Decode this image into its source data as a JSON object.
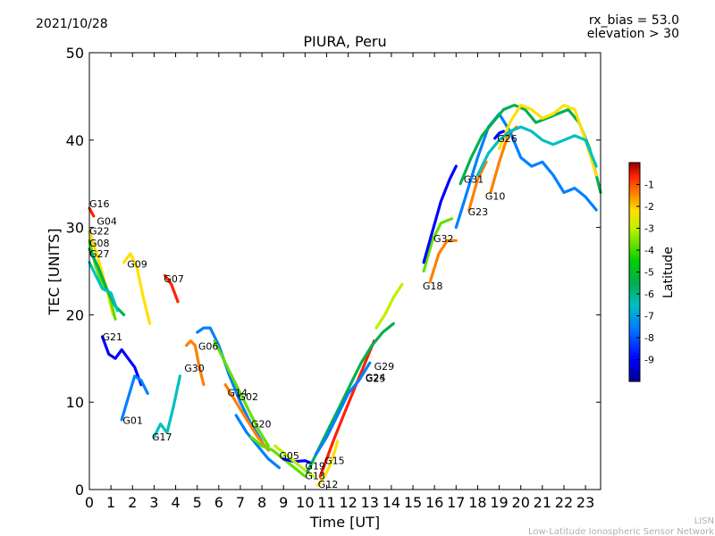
{
  "header": {
    "date": "2021/10/28",
    "rx_bias": "rx_bias = 53.0",
    "elevation": "elevation > 30"
  },
  "footer": {
    "org": "LISN",
    "org_full": "Low-Latitude Ionospheric Sensor Network"
  },
  "colors": {
    "ramp": [
      "#00008f",
      "#0000ff",
      "#0080ff",
      "#00c0c0",
      "#00b050",
      "#00d000",
      "#60e000",
      "#c0f000",
      "#ffe000",
      "#ff8000",
      "#ff2000",
      "#900000"
    ]
  },
  "chart_data": {
    "type": "line",
    "title": "PIURA, Peru",
    "xlabel": "Time [UT]",
    "ylabel": "TEC [UNITS]",
    "xlim": [
      0,
      23.7
    ],
    "ylim": [
      0,
      50
    ],
    "xticks": [
      0,
      1,
      2,
      3,
      4,
      5,
      6,
      7,
      8,
      9,
      10,
      11,
      12,
      13,
      14,
      15,
      16,
      17,
      18,
      19,
      20,
      21,
      22,
      23
    ],
    "yticks": [
      0,
      10,
      20,
      30,
      40,
      50
    ],
    "grid": false,
    "colorbar": {
      "label": "Latitude",
      "ticks": [
        -1,
        -2,
        -3,
        -4,
        -5,
        -6,
        -7,
        -8,
        -9
      ],
      "range": [
        -10,
        0
      ]
    },
    "series": [
      {
        "name": "G16",
        "lat": -1,
        "x": [
          0.0,
          0.2
        ],
        "y": [
          32.2,
          31.3
        ]
      },
      {
        "name": "G04",
        "lat": -3,
        "x": [
          0.0,
          0.4,
          0.8,
          1.1
        ],
        "y": [
          29.5,
          26.5,
          23.0,
          20.0
        ]
      },
      {
        "name": "G22",
        "lat": -5,
        "x": [
          0.0,
          0.3,
          0.6,
          0.9,
          1.2
        ],
        "y": [
          28.5,
          25.5,
          23.5,
          22.5,
          19.5
        ]
      },
      {
        "name": "G08",
        "lat": -6,
        "x": [
          0.0,
          0.4,
          0.8,
          1.2,
          1.6
        ],
        "y": [
          27.5,
          25.5,
          23.0,
          21.0,
          20.0
        ]
      },
      {
        "name": "G27",
        "lat": -7,
        "x": [
          0.0,
          0.3,
          0.6,
          1.0,
          1.3
        ],
        "y": [
          26.0,
          24.5,
          23.0,
          22.5,
          20.5
        ]
      },
      {
        "name": "G09",
        "lat": -3,
        "x": [
          1.6,
          1.9,
          2.2,
          2.5,
          2.8
        ],
        "y": [
          26.0,
          27.0,
          25.5,
          22.0,
          19.0
        ]
      },
      {
        "name": "G07",
        "lat": -1,
        "x": [
          3.5,
          3.8,
          4.1
        ],
        "y": [
          24.5,
          23.5,
          21.5
        ]
      },
      {
        "name": "G21",
        "lat": -9,
        "x": [
          0.6,
          0.9,
          1.2,
          1.5,
          1.8,
          2.1,
          2.4
        ],
        "y": [
          17.5,
          15.5,
          15.0,
          16.0,
          15.0,
          14.0,
          12.0
        ]
      },
      {
        "name": "G06",
        "lat": -8,
        "x": [
          5.0,
          5.3,
          5.6,
          6.0,
          6.5,
          7.0,
          7.5,
          8.0
        ],
        "y": [
          18.0,
          18.5,
          18.5,
          16.5,
          13.0,
          10.0,
          7.5,
          5.5
        ]
      },
      {
        "name": "G30",
        "lat": -2,
        "x": [
          4.5,
          4.7,
          4.9,
          5.1,
          5.3
        ],
        "y": [
          16.5,
          17.0,
          16.5,
          14.0,
          12.0
        ]
      },
      {
        "name": "G14",
        "lat": -5,
        "x": [
          5.8,
          6.3,
          6.8,
          7.3,
          7.8,
          8.3
        ],
        "y": [
          17.0,
          14.5,
          12.0,
          9.5,
          7.0,
          5.0
        ]
      },
      {
        "name": "G02",
        "lat": -2,
        "x": [
          6.3,
          6.8,
          7.3,
          7.8,
          8.3
        ],
        "y": [
          12.0,
          10.0,
          8.0,
          6.0,
          4.5
        ]
      },
      {
        "name": "G20",
        "lat": -8,
        "x": [
          6.8,
          7.3,
          7.8,
          8.3,
          8.8
        ],
        "y": [
          8.5,
          6.5,
          5.0,
          3.5,
          2.5
        ]
      },
      {
        "name": "G01",
        "lat": -8,
        "x": [
          1.5,
          1.8,
          2.1,
          2.4,
          2.7
        ],
        "y": [
          8.0,
          10.5,
          13.0,
          12.5,
          11.0
        ]
      },
      {
        "name": "G17",
        "lat": -7,
        "x": [
          3.0,
          3.3,
          3.6,
          3.9,
          4.2
        ],
        "y": [
          6.0,
          7.5,
          6.5,
          9.5,
          13.0
        ]
      },
      {
        "name": "G05",
        "lat": -5,
        "x": [
          7.5,
          8.0,
          8.5,
          9.0,
          9.5,
          10.0
        ],
        "y": [
          6.0,
          5.0,
          4.5,
          3.5,
          2.5,
          1.5
        ]
      },
      {
        "name": "G19",
        "lat": -9,
        "x": [
          9.0,
          9.5,
          10.0,
          10.3
        ],
        "y": [
          3.5,
          3.2,
          3.3,
          3.0
        ]
      },
      {
        "name": "G13",
        "lat": -4,
        "x": [
          8.6,
          9.1,
          9.6,
          10.1,
          10.4
        ],
        "y": [
          5.0,
          4.0,
          3.0,
          2.0,
          1.5
        ]
      },
      {
        "name": "G15",
        "lat": -1,
        "x": [
          10.7,
          11.0,
          11.3,
          11.7,
          12.2,
          12.7,
          13.2
        ],
        "y": [
          1.5,
          3.5,
          5.5,
          8.0,
          11.0,
          14.0,
          17.0
        ]
      },
      {
        "name": "G12",
        "lat": -3,
        "x": [
          10.6,
          10.9,
          11.2,
          11.5
        ],
        "y": [
          0.5,
          1.5,
          3.0,
          5.5
        ]
      },
      {
        "name": "G29",
        "lat": -6,
        "x": [
          10.1,
          10.6,
          11.1,
          11.6,
          12.1,
          12.6,
          13.1,
          13.6,
          14.1
        ],
        "y": [
          2.0,
          4.5,
          7.0,
          9.5,
          12.0,
          14.5,
          16.5,
          18.0,
          19.0
        ]
      },
      {
        "name": "G25",
        "lat": -8,
        "x": [
          10.5,
          11.0,
          11.5,
          12.0,
          12.5,
          13.0
        ],
        "y": [
          4.0,
          6.0,
          8.5,
          11.0,
          12.5,
          14.5
        ]
      },
      {
        "name": "G24",
        "lat": -4,
        "x": [
          13.3,
          13.7,
          14.1,
          14.5
        ],
        "y": [
          18.5,
          20.0,
          22.0,
          23.5
        ]
      },
      {
        "name": "G18",
        "lat": -2,
        "x": [
          15.8,
          16.2,
          16.6,
          17.0
        ],
        "y": [
          23.8,
          27.0,
          28.5,
          28.5
        ]
      },
      {
        "name": "G32",
        "lat": -5,
        "x": [
          15.5,
          15.9,
          16.3,
          16.8
        ],
        "y": [
          25.0,
          28.5,
          30.5,
          31.0
        ]
      },
      {
        "name": "G31",
        "lat": -9,
        "x": [
          15.5,
          15.9,
          16.3,
          16.7,
          17.0
        ],
        "y": [
          26.0,
          29.5,
          33.0,
          35.5,
          37.0
        ]
      },
      {
        "name": "G23",
        "lat": -2,
        "x": [
          17.6,
          18.0,
          18.4
        ],
        "y": [
          32.0,
          35.5,
          37.5
        ]
      },
      {
        "name": "G10",
        "lat": -2,
        "x": [
          18.6,
          19.0,
          19.4,
          19.8
        ],
        "y": [
          34.0,
          37.5,
          40.5,
          41.5
        ]
      },
      {
        "name": "G26",
        "lat": -9,
        "x": [
          18.8,
          19.0,
          19.2
        ],
        "y": [
          40.2,
          40.8,
          41.0
        ]
      },
      {
        "name": "G26-b",
        "lat": -8,
        "x": [
          17.0,
          17.5,
          18.0,
          18.5,
          19.0,
          19.5,
          20.0,
          20.5,
          21.0,
          21.5,
          22.0,
          22.5,
          23.0,
          23.5
        ],
        "y": [
          30.0,
          34.0,
          38.0,
          41.5,
          43.0,
          41.0,
          38.0,
          37.0,
          37.5,
          36.0,
          34.0,
          34.5,
          33.5,
          32.0
        ]
      },
      {
        "name": "G31-b",
        "lat": -6,
        "x": [
          17.2,
          17.7,
          18.2,
          18.7,
          19.2,
          19.7,
          20.2,
          20.7,
          21.2,
          21.7,
          22.2,
          22.7,
          23.2,
          23.7
        ],
        "y": [
          35.0,
          38.0,
          40.5,
          42.0,
          43.5,
          44.0,
          43.5,
          42.0,
          42.5,
          43.0,
          43.5,
          42.0,
          39.0,
          34.0
        ]
      },
      {
        "name": "G10-b",
        "lat": -3,
        "x": [
          19.0,
          19.5,
          20.0,
          20.5,
          21.0,
          21.5,
          22.0,
          22.5,
          23.0,
          23.5
        ],
        "y": [
          39.0,
          42.0,
          44.0,
          43.5,
          42.5,
          43.0,
          44.0,
          43.5,
          40.0,
          36.0
        ]
      },
      {
        "name": "G23-b",
        "lat": -7,
        "x": [
          18.0,
          18.5,
          19.0,
          19.5,
          20.0,
          20.5,
          21.0,
          21.5,
          22.0,
          22.5,
          23.0,
          23.5
        ],
        "y": [
          36.0,
          38.5,
          40.0,
          41.0,
          41.5,
          41.0,
          40.0,
          39.5,
          40.0,
          40.5,
          40.0,
          37.0
        ]
      }
    ],
    "labels": [
      {
        "text": "G16",
        "x": 0.0,
        "y": 32.3
      },
      {
        "text": "G04",
        "x": 0.35,
        "y": 30.3
      },
      {
        "text": "G22",
        "x": 0.0,
        "y": 29.2
      },
      {
        "text": "G08",
        "x": 0.0,
        "y": 27.8
      },
      {
        "text": "G27",
        "x": 0.0,
        "y": 26.6
      },
      {
        "text": "G09",
        "x": 1.75,
        "y": 25.4
      },
      {
        "text": "G07",
        "x": 3.45,
        "y": 23.7
      },
      {
        "text": "G21",
        "x": 0.6,
        "y": 17.1
      },
      {
        "text": "G06",
        "x": 5.05,
        "y": 16.0
      },
      {
        "text": "G30",
        "x": 4.4,
        "y": 13.5
      },
      {
        "text": "G14",
        "x": 6.4,
        "y": 10.7
      },
      {
        "text": "G02",
        "x": 6.9,
        "y": 10.2
      },
      {
        "text": "G20",
        "x": 7.5,
        "y": 7.1
      },
      {
        "text": "G01",
        "x": 1.55,
        "y": 7.5
      },
      {
        "text": "G17",
        "x": 2.9,
        "y": 5.6
      },
      {
        "text": "G05",
        "x": 8.8,
        "y": 3.5
      },
      {
        "text": "G19",
        "x": 10.0,
        "y": 2.3
      },
      {
        "text": "G15",
        "x": 10.9,
        "y": 2.9
      },
      {
        "text": "G13",
        "x": 10.0,
        "y": 1.2
      },
      {
        "text": "G12",
        "x": 10.6,
        "y": 0.2
      },
      {
        "text": "G29",
        "x": 13.2,
        "y": 13.7
      },
      {
        "text": "G24",
        "x": 12.8,
        "y": 12.4
      },
      {
        "text": "G25",
        "x": 12.8,
        "y": 12.3
      },
      {
        "text": "G18",
        "x": 15.45,
        "y": 22.9
      },
      {
        "text": "G32",
        "x": 15.95,
        "y": 28.3
      },
      {
        "text": "G31",
        "x": 17.35,
        "y": 35.1
      },
      {
        "text": "G23",
        "x": 17.55,
        "y": 31.4
      },
      {
        "text": "G10",
        "x": 18.35,
        "y": 33.2
      },
      {
        "text": "G26",
        "x": 18.9,
        "y": 39.8
      }
    ]
  }
}
